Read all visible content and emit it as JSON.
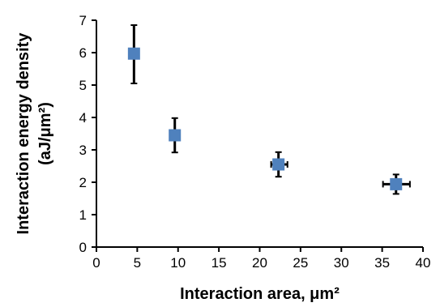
{
  "chart_data": {
    "type": "scatter",
    "title": "",
    "xlabel": "Interaction area, μm²",
    "ylabel_line1": "Interaction energy density",
    "ylabel_line2": "(aJ/μm²)",
    "xlim": [
      0,
      40
    ],
    "ylim": [
      0,
      7
    ],
    "x_ticks": [
      "0",
      "5",
      "10",
      "15",
      "20",
      "25",
      "30",
      "35",
      "40"
    ],
    "y_ticks": [
      "0",
      "1",
      "2",
      "3",
      "4",
      "5",
      "6",
      "7"
    ],
    "grid": false,
    "legend": "none",
    "marker": "square",
    "marker_color": "#4F81BD",
    "errorbar_color": "#000000",
    "points": [
      {
        "x": 4.6,
        "y": 5.97,
        "y_err": [
          5.05,
          6.85
        ],
        "x_err": null
      },
      {
        "x": 9.6,
        "y": 3.45,
        "y_err": [
          2.92,
          3.98
        ],
        "x_err": null
      },
      {
        "x": 22.3,
        "y": 2.55,
        "y_err": [
          2.17,
          2.93
        ],
        "x_err": [
          21.4,
          23.4
        ]
      },
      {
        "x": 36.7,
        "y": 1.94,
        "y_err": [
          1.64,
          2.24
        ],
        "x_err": [
          35.1,
          38.4
        ]
      }
    ]
  }
}
